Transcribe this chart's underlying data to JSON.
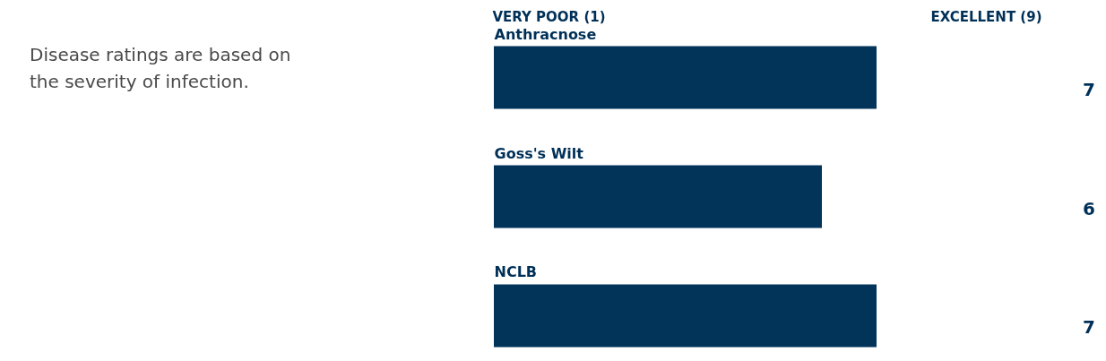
{
  "chart_data": {
    "type": "bar",
    "orientation": "horizontal",
    "categories": [
      "Anthracnose",
      "Goss's Wilt",
      "NCLB"
    ],
    "values": [
      7,
      6,
      7
    ],
    "color": "#02345a",
    "xlim": [
      0,
      9
    ],
    "xticks": [
      {
        "value": 1,
        "label": "VERY POOR (1)"
      },
      {
        "value": 9,
        "label": "EXCELLENT (9)"
      }
    ],
    "data_labels": true,
    "grid": false,
    "annotations": [
      "Disease ratings are based on the severity of infection."
    ]
  }
}
